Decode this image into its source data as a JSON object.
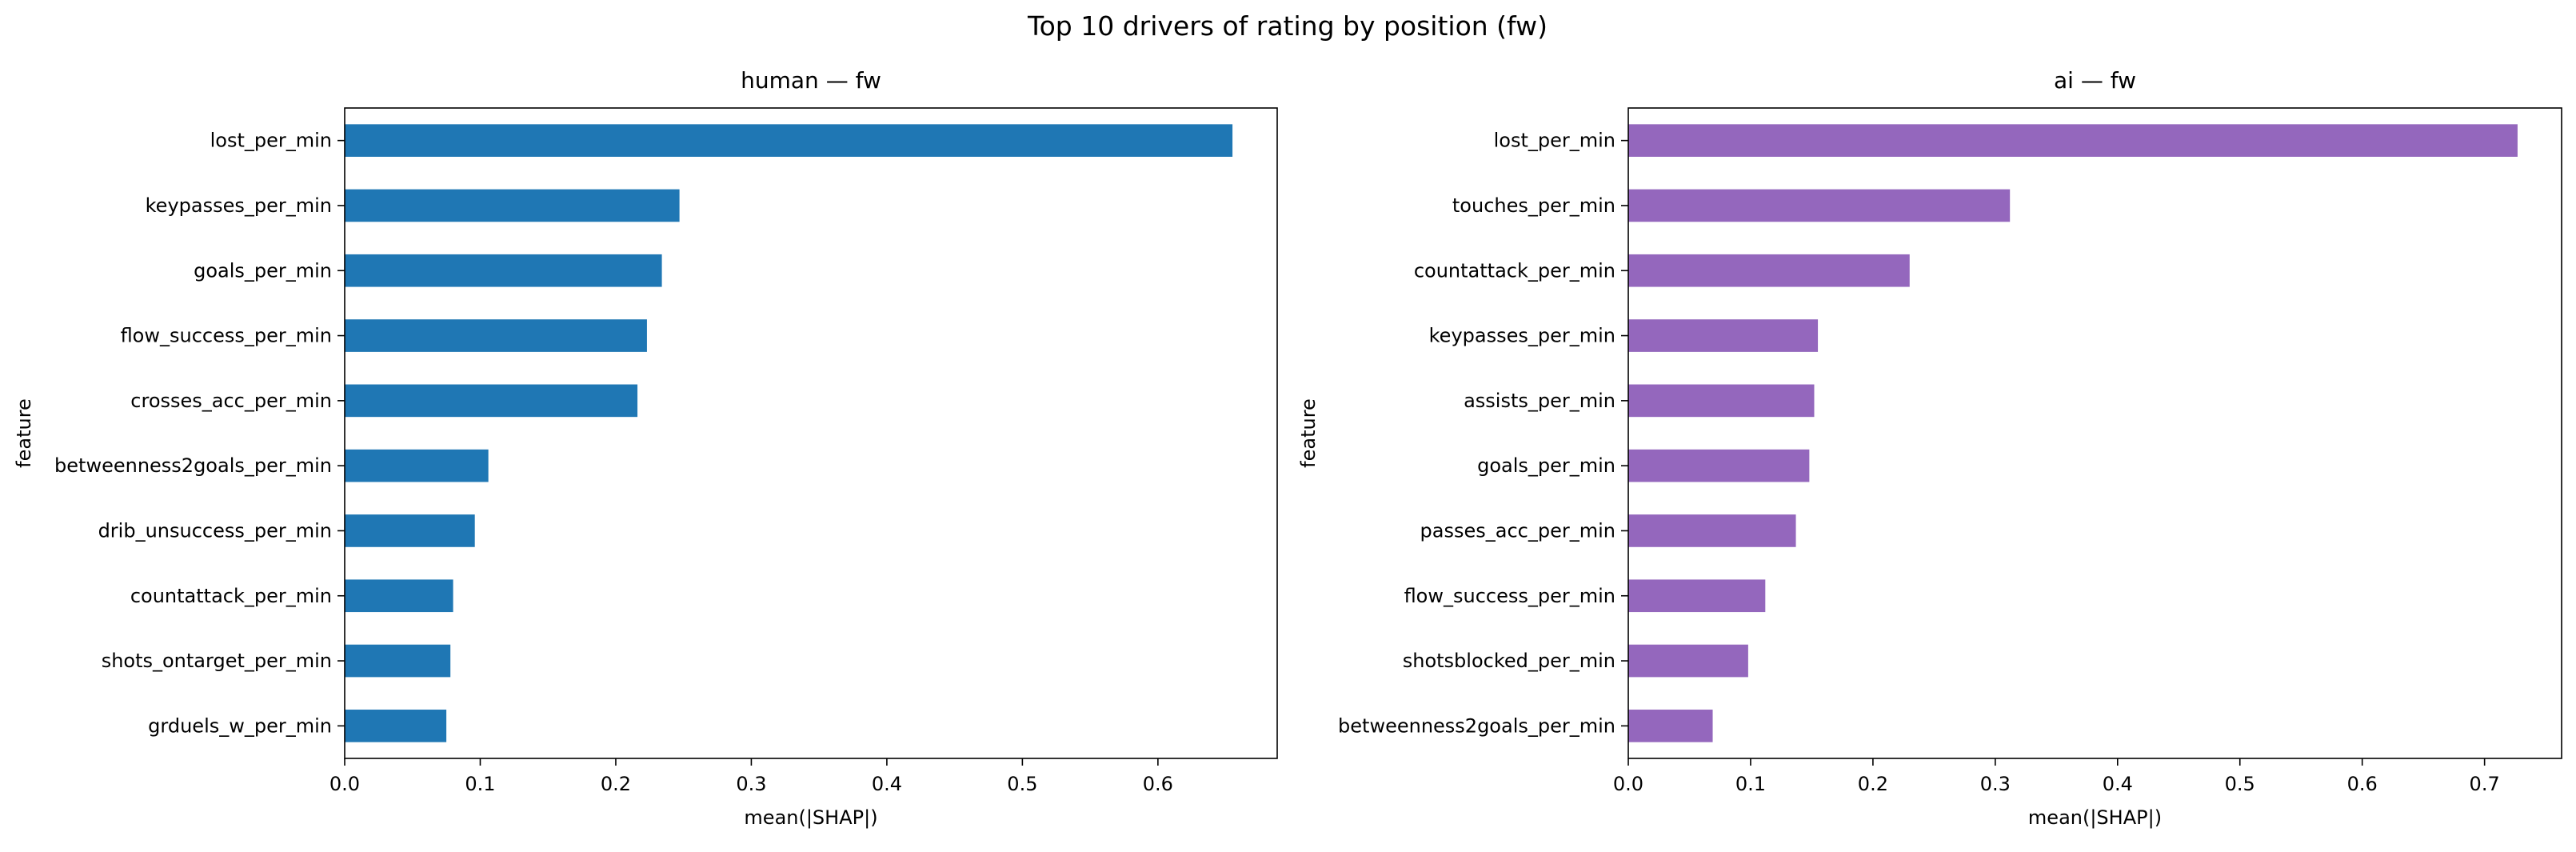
{
  "figure": {
    "title": "Top 10 drivers of rating by position (fw)"
  },
  "chart_data": [
    {
      "type": "bar",
      "orientation": "horizontal",
      "title": "human — fw",
      "xlabel": "mean(|SHAP|)",
      "ylabel": "feature",
      "color": "#1f77b4",
      "xlim": [
        0,
        0.688
      ],
      "xticks": [
        0,
        0.1,
        0.2,
        0.3,
        0.4,
        0.5,
        0.6
      ],
      "xtick_labels": [
        "0.0",
        "0.1",
        "0.2",
        "0.3",
        "0.4",
        "0.5",
        "0.6"
      ],
      "grid": false,
      "categories": [
        "lost_per_min",
        "keypasses_per_min",
        "goals_per_min",
        "flow_success_per_min",
        "crosses_acc_per_min",
        "betweenness2goals_per_min",
        "drib_unsuccess_per_min",
        "countattack_per_min",
        "shots_ontarget_per_min",
        "grduels_w_per_min"
      ],
      "values": [
        0.655,
        0.247,
        0.234,
        0.223,
        0.216,
        0.106,
        0.096,
        0.08,
        0.078,
        0.075
      ]
    },
    {
      "type": "bar",
      "orientation": "horizontal",
      "title": "ai — fw",
      "xlabel": "mean(|SHAP|)",
      "ylabel": "feature",
      "color": "#9467bd",
      "xlim": [
        0,
        0.763
      ],
      "xticks": [
        0,
        0.1,
        0.2,
        0.3,
        0.4,
        0.5,
        0.6,
        0.7
      ],
      "xtick_labels": [
        "0.0",
        "0.1",
        "0.2",
        "0.3",
        "0.4",
        "0.5",
        "0.6",
        "0.7"
      ],
      "grid": false,
      "categories": [
        "lost_per_min",
        "touches_per_min",
        "countattack_per_min",
        "keypasses_per_min",
        "assists_per_min",
        "goals_per_min",
        "passes_acc_per_min",
        "flow_success_per_min",
        "shotsblocked_per_min",
        "betweenness2goals_per_min"
      ],
      "values": [
        0.727,
        0.312,
        0.23,
        0.155,
        0.152,
        0.148,
        0.137,
        0.112,
        0.098,
        0.069
      ]
    }
  ]
}
